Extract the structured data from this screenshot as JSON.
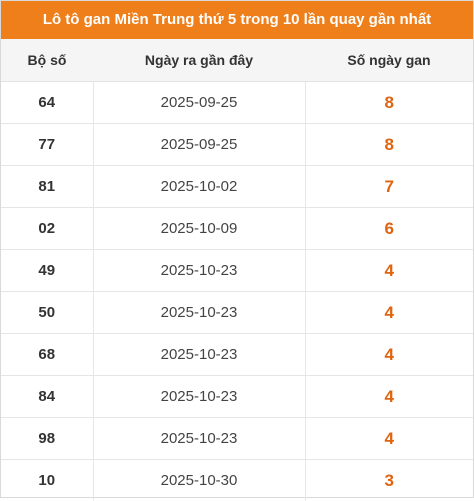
{
  "title": "Lô tô gan Miền Trung thứ 5 trong 10 lần quay gần nhất",
  "colors": {
    "header_bg": "#ef7f1a",
    "gan_value": "#e0630f"
  },
  "table": {
    "headers": [
      "Bộ số",
      "Ngày ra gần đây",
      "Số ngày gan"
    ],
    "rows": [
      [
        "64",
        "2025-09-25",
        "8"
      ],
      [
        "77",
        "2025-09-25",
        "8"
      ],
      [
        "81",
        "2025-10-02",
        "7"
      ],
      [
        "02",
        "2025-10-09",
        "6"
      ],
      [
        "49",
        "2025-10-23",
        "4"
      ],
      [
        "50",
        "2025-10-23",
        "4"
      ],
      [
        "68",
        "2025-10-23",
        "4"
      ],
      [
        "84",
        "2025-10-23",
        "4"
      ],
      [
        "98",
        "2025-10-23",
        "4"
      ],
      [
        "10",
        "2025-10-30",
        "3"
      ]
    ]
  }
}
